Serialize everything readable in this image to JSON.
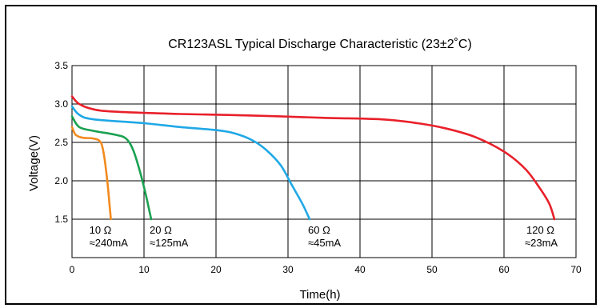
{
  "chart_data": {
    "type": "line",
    "title": "CR123ASL Typical Discharge Characteristic (23±2˚C)",
    "xlabel": "Time(h)",
    "ylabel": "Voltage(V)",
    "xlim": [
      0,
      70
    ],
    "ylim": [
      1.0,
      3.5
    ],
    "x_ticks": [
      0,
      10,
      20,
      30,
      40,
      50,
      60,
      70
    ],
    "y_ticks": [
      1.5,
      2.0,
      2.5,
      3.0,
      3.5
    ],
    "grid": true,
    "colors": {
      "10ohm": "#f28a1e",
      "20ohm": "#1aa150",
      "60ohm": "#20a8e6",
      "120ohm": "#e8202a"
    },
    "series": [
      {
        "name": "10 Ω",
        "load": "≈240mA",
        "color_key": "10ohm",
        "points": [
          [
            0,
            2.7
          ],
          [
            0.5,
            2.6
          ],
          [
            1.5,
            2.56
          ],
          [
            3,
            2.55
          ],
          [
            4,
            2.5
          ],
          [
            4.5,
            2.3
          ],
          [
            4.9,
            2.0
          ],
          [
            5.2,
            1.7
          ],
          [
            5.4,
            1.5
          ]
        ]
      },
      {
        "name": "20 Ω",
        "load": "≈125mA",
        "color_key": "20ohm",
        "points": [
          [
            0,
            2.84
          ],
          [
            1,
            2.7
          ],
          [
            3,
            2.65
          ],
          [
            6,
            2.6
          ],
          [
            7.5,
            2.55
          ],
          [
            8.5,
            2.4
          ],
          [
            9.5,
            2.1
          ],
          [
            10.3,
            1.8
          ],
          [
            11,
            1.5
          ]
        ]
      },
      {
        "name": "60 Ω",
        "load": "≈45mA",
        "color_key": "60ohm",
        "points": [
          [
            0,
            2.97
          ],
          [
            1,
            2.86
          ],
          [
            3,
            2.8
          ],
          [
            10,
            2.75
          ],
          [
            15,
            2.7
          ],
          [
            20,
            2.66
          ],
          [
            22.5,
            2.62
          ],
          [
            25,
            2.53
          ],
          [
            27,
            2.4
          ],
          [
            29,
            2.2
          ],
          [
            30.5,
            1.95
          ],
          [
            32,
            1.7
          ],
          [
            33,
            1.5
          ]
        ]
      },
      {
        "name": "120 Ω",
        "load": "≈23mA",
        "color_key": "120ohm",
        "points": [
          [
            0,
            3.1
          ],
          [
            1,
            3.0
          ],
          [
            3,
            2.93
          ],
          [
            6,
            2.9
          ],
          [
            15,
            2.87
          ],
          [
            25,
            2.85
          ],
          [
            35,
            2.82
          ],
          [
            43,
            2.8
          ],
          [
            48,
            2.75
          ],
          [
            52,
            2.68
          ],
          [
            56,
            2.57
          ],
          [
            60,
            2.38
          ],
          [
            63,
            2.15
          ],
          [
            65,
            1.9
          ],
          [
            66.3,
            1.7
          ],
          [
            67,
            1.5
          ]
        ]
      }
    ]
  }
}
